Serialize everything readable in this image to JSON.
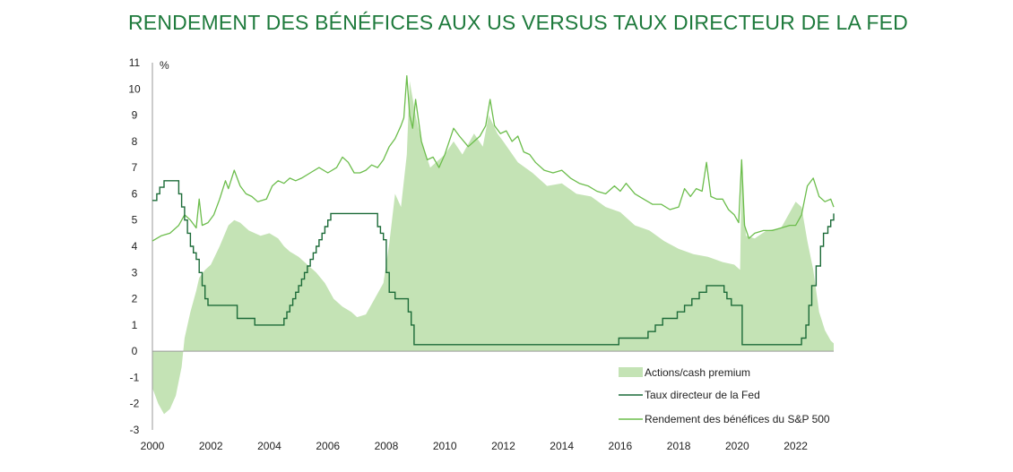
{
  "title": "RENDEMENT DES BÉNÉFICES AUX US VERSUS TAUX DIRECTEUR DE LA FED",
  "chart_data": {
    "type": "line",
    "title": "RENDEMENT DES BÉNÉFICES AUX US VERSUS TAUX DIRECTEUR DE LA FED",
    "ylabel": "%",
    "xlabel": "",
    "xlim": [
      2000.0,
      2023.3
    ],
    "ylim": [
      -3,
      11
    ],
    "x_ticks": [
      "2000",
      "2002",
      "2004",
      "2006",
      "2008",
      "2010",
      "2012",
      "2014",
      "2016",
      "2018",
      "2020",
      "2022"
    ],
    "y_ticks": [
      "-3",
      "-2",
      "-1",
      "0",
      "1",
      "2",
      "3",
      "4",
      "5",
      "6",
      "7",
      "8",
      "9",
      "10",
      "11"
    ],
    "grid": false,
    "legend_position": "bottom-right",
    "colors": {
      "premium": "#c4e3b5",
      "fed": "#1c6b38",
      "earnings": "#6cbd4c"
    },
    "series": [
      {
        "name": "Actions/cash premium",
        "style": "area",
        "x": [
          2000.0,
          2000.2,
          2000.4,
          2000.6,
          2000.8,
          2001.0,
          2001.1,
          2001.3,
          2001.5,
          2001.6,
          2001.8,
          2002.0,
          2002.3,
          2002.6,
          2002.8,
          2003.0,
          2003.3,
          2003.7,
          2004.0,
          2004.3,
          2004.5,
          2004.7,
          2005.0,
          2005.3,
          2005.6,
          2005.9,
          2006.2,
          2006.5,
          2006.8,
          2007.0,
          2007.3,
          2007.6,
          2007.9,
          2008.1,
          2008.3,
          2008.5,
          2008.7,
          2008.8,
          2009.0,
          2009.2,
          2009.5,
          2010.0,
          2010.3,
          2010.6,
          2011.0,
          2011.3,
          2011.5,
          2011.8,
          2012.0,
          2012.5,
          2013.0,
          2013.5,
          2014.0,
          2014.5,
          2015.0,
          2015.5,
          2016.0,
          2016.5,
          2017.0,
          2017.5,
          2018.0,
          2018.5,
          2019.0,
          2019.5,
          2019.9,
          2020.1,
          2020.15,
          2020.3,
          2020.6,
          2021.0,
          2021.5,
          2022.0,
          2022.2,
          2022.4,
          2022.6,
          2022.8,
          2023.0,
          2023.2,
          2023.3
        ],
        "values": [
          -1.4,
          -2.0,
          -2.4,
          -2.2,
          -1.7,
          -0.6,
          0.5,
          1.5,
          2.3,
          2.8,
          3.1,
          3.3,
          4.0,
          4.8,
          5.0,
          4.9,
          4.6,
          4.4,
          4.5,
          4.3,
          4.0,
          3.8,
          3.6,
          3.3,
          3.0,
          2.6,
          2.0,
          1.7,
          1.5,
          1.3,
          1.4,
          2.0,
          2.6,
          4.1,
          6.0,
          5.5,
          7.5,
          10.3,
          9.0,
          8.0,
          7.0,
          7.5,
          8.0,
          7.5,
          8.3,
          7.8,
          9.0,
          8.3,
          8.0,
          7.2,
          6.8,
          6.3,
          6.4,
          6.0,
          5.9,
          5.5,
          5.3,
          4.8,
          4.6,
          4.2,
          3.9,
          3.7,
          3.6,
          3.4,
          3.3,
          3.1,
          6.9,
          4.4,
          4.3,
          4.6,
          4.7,
          5.7,
          5.5,
          4.2,
          3.1,
          1.5,
          0.8,
          0.4,
          0.3
        ]
      },
      {
        "name": "Taux directeur de la Fed",
        "style": "step",
        "x": [
          2000.0,
          2000.15,
          2000.25,
          2000.4,
          2000.9,
          2001.0,
          2001.1,
          2001.2,
          2001.3,
          2001.4,
          2001.5,
          2001.6,
          2001.7,
          2001.8,
          2001.9,
          2002.9,
          2003.5,
          2004.5,
          2004.6,
          2004.7,
          2004.8,
          2004.9,
          2005.0,
          2005.1,
          2005.2,
          2005.3,
          2005.4,
          2005.5,
          2005.6,
          2005.7,
          2005.8,
          2005.9,
          2006.0,
          2006.1,
          2006.2,
          2006.3,
          2006.4,
          2006.5,
          2007.7,
          2007.8,
          2007.9,
          2008.0,
          2008.1,
          2008.3,
          2008.75,
          2008.85,
          2008.95,
          2015.95,
          2016.95,
          2017.2,
          2017.45,
          2017.95,
          2018.2,
          2018.45,
          2018.7,
          2018.95,
          2019.55,
          2019.65,
          2019.8,
          2020.17,
          2022.2,
          2022.35,
          2022.45,
          2022.55,
          2022.7,
          2022.85,
          2022.95,
          2023.1,
          2023.2,
          2023.3
        ],
        "values": [
          5.75,
          6.0,
          6.25,
          6.5,
          6.0,
          5.5,
          5.0,
          4.5,
          4.0,
          3.75,
          3.5,
          3.0,
          2.5,
          2.0,
          1.75,
          1.25,
          1.0,
          1.25,
          1.5,
          1.75,
          2.0,
          2.25,
          2.5,
          2.75,
          3.0,
          3.25,
          3.5,
          3.75,
          4.0,
          4.25,
          4.5,
          4.75,
          5.0,
          5.25,
          5.25,
          5.25,
          5.25,
          5.25,
          4.75,
          4.5,
          4.25,
          3.0,
          2.25,
          2.0,
          1.5,
          1.0,
          0.25,
          0.5,
          0.75,
          1.0,
          1.25,
          1.5,
          1.75,
          2.0,
          2.25,
          2.5,
          2.25,
          2.0,
          1.75,
          0.25,
          0.5,
          1.0,
          1.75,
          2.5,
          3.25,
          4.0,
          4.5,
          4.75,
          5.0,
          5.25
        ]
      },
      {
        "name": "Rendement des bénéfices du S&P 500",
        "style": "line",
        "x": [
          2000.0,
          2000.3,
          2000.6,
          2000.9,
          2001.1,
          2001.3,
          2001.5,
          2001.6,
          2001.7,
          2001.9,
          2002.1,
          2002.3,
          2002.5,
          2002.6,
          2002.8,
          2003.0,
          2003.2,
          2003.4,
          2003.6,
          2003.9,
          2004.1,
          2004.3,
          2004.5,
          2004.7,
          2004.9,
          2005.1,
          2005.4,
          2005.7,
          2006.0,
          2006.3,
          2006.5,
          2006.7,
          2006.9,
          2007.1,
          2007.3,
          2007.5,
          2007.7,
          2007.9,
          2008.1,
          2008.3,
          2008.5,
          2008.6,
          2008.7,
          2008.8,
          2008.9,
          2009.0,
          2009.2,
          2009.4,
          2009.6,
          2009.8,
          2010.0,
          2010.3,
          2010.5,
          2010.8,
          2011.0,
          2011.2,
          2011.4,
          2011.55,
          2011.7,
          2011.9,
          2012.1,
          2012.3,
          2012.5,
          2012.7,
          2012.9,
          2013.1,
          2013.4,
          2013.7,
          2014.0,
          2014.3,
          2014.6,
          2014.9,
          2015.2,
          2015.5,
          2015.8,
          2016.0,
          2016.2,
          2016.5,
          2016.8,
          2017.1,
          2017.4,
          2017.7,
          2018.0,
          2018.2,
          2018.4,
          2018.6,
          2018.8,
          2018.95,
          2019.1,
          2019.3,
          2019.5,
          2019.7,
          2019.9,
          2020.05,
          2020.15,
          2020.25,
          2020.4,
          2020.6,
          2020.9,
          2021.2,
          2021.5,
          2021.8,
          2022.0,
          2022.2,
          2022.4,
          2022.6,
          2022.8,
          2023.0,
          2023.2,
          2023.3
        ],
        "values": [
          4.2,
          4.4,
          4.5,
          4.8,
          5.2,
          5.0,
          4.7,
          5.8,
          4.8,
          4.9,
          5.2,
          5.8,
          6.5,
          6.2,
          6.9,
          6.3,
          6.0,
          5.9,
          5.7,
          5.8,
          6.3,
          6.5,
          6.4,
          6.6,
          6.5,
          6.6,
          6.8,
          7.0,
          6.8,
          7.0,
          7.4,
          7.2,
          6.8,
          6.8,
          6.9,
          7.1,
          7.0,
          7.3,
          7.8,
          8.1,
          8.6,
          8.9,
          10.5,
          9.0,
          8.5,
          9.6,
          8.0,
          7.3,
          7.4,
          7.0,
          7.5,
          8.5,
          8.2,
          7.8,
          8.0,
          8.2,
          8.6,
          9.6,
          8.6,
          8.3,
          8.4,
          8.0,
          8.2,
          7.6,
          7.5,
          7.2,
          6.9,
          6.8,
          6.9,
          6.6,
          6.4,
          6.3,
          6.1,
          6.0,
          6.3,
          6.1,
          6.4,
          6.0,
          5.8,
          5.6,
          5.6,
          5.4,
          5.5,
          6.2,
          5.9,
          6.2,
          6.1,
          7.2,
          5.9,
          5.8,
          5.8,
          5.4,
          5.2,
          4.9,
          7.3,
          4.8,
          4.3,
          4.5,
          4.6,
          4.6,
          4.7,
          4.8,
          4.8,
          5.2,
          6.3,
          6.6,
          5.9,
          5.7,
          5.8,
          5.5
        ]
      }
    ]
  }
}
